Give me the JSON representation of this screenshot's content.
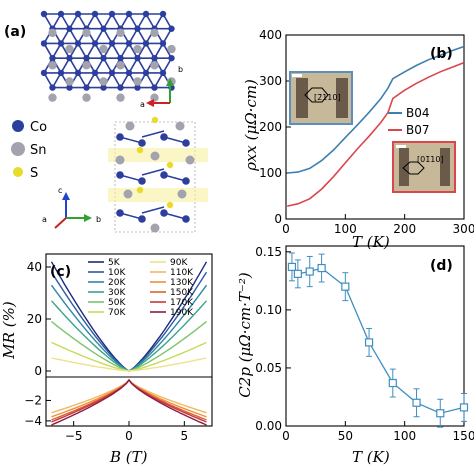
{
  "panel_a": {
    "label": "(a)",
    "elements": [
      {
        "symbol": "Co",
        "color": "#2c3e9e"
      },
      {
        "symbol": "Sn",
        "color": "#9a9aa6"
      },
      {
        "symbol": "S",
        "color": "#e8dc2a"
      }
    ],
    "axes_top": {
      "a": "a",
      "b": "b"
    },
    "axes_bottom": {
      "a": "a",
      "b": "b",
      "c": "c"
    }
  },
  "chart_data": [
    {
      "id": "b",
      "type": "line",
      "panel_label": "(b)",
      "xlabel": "T (K)",
      "ylabel": "ρxx (μΩ·cm)",
      "xlim": [
        0,
        300
      ],
      "ylim": [
        0,
        400
      ],
      "xticks": [
        0,
        100,
        200,
        300
      ],
      "yticks": [
        0,
        100,
        200,
        300,
        400
      ],
      "legend_position": "right",
      "inset_labels": [
        "[2̄110]",
        "[01̄10]"
      ],
      "series": [
        {
          "name": "B04",
          "color": "#3f7fb0",
          "x": [
            2,
            20,
            40,
            60,
            80,
            100,
            120,
            140,
            160,
            172,
            180,
            200,
            220,
            240,
            260,
            280,
            300
          ],
          "y": [
            100,
            102,
            110,
            127,
            150,
            177,
            204,
            232,
            262,
            285,
            305,
            320,
            334,
            346,
            356,
            366,
            375
          ]
        },
        {
          "name": "B07",
          "color": "#d9474d",
          "x": [
            2,
            20,
            40,
            60,
            80,
            100,
            120,
            140,
            160,
            172,
            180,
            200,
            220,
            240,
            260,
            280,
            300
          ],
          "y": [
            28,
            33,
            44,
            65,
            92,
            122,
            152,
            180,
            210,
            232,
            262,
            280,
            295,
            308,
            320,
            330,
            340
          ]
        }
      ]
    },
    {
      "id": "c",
      "type": "line",
      "panel_label": "(c)",
      "xlabel": "B (T)",
      "ylabel": "MR (%)",
      "xlim": [
        -7.5,
        7.5
      ],
      "ylim": [
        -4.5,
        45
      ],
      "xticks": [
        -5,
        0,
        5
      ],
      "yticks_top": [
        0,
        20,
        40
      ],
      "yticks_bottom": [
        -2,
        -4
      ],
      "legend_position": "top",
      "series": [
        {
          "name": "5K",
          "color": "#1b2a7a",
          "coef": 42,
          "sign": 1
        },
        {
          "name": "10K",
          "color": "#2c5aa0",
          "coef": 38,
          "sign": 1
        },
        {
          "name": "20K",
          "color": "#2f86a8",
          "coef": 33,
          "sign": 1
        },
        {
          "name": "30K",
          "color": "#3aa38c",
          "coef": 27,
          "sign": 1
        },
        {
          "name": "50K",
          "color": "#7cc46a",
          "coef": 19,
          "sign": 1
        },
        {
          "name": "70K",
          "color": "#c9d95a",
          "coef": 11,
          "sign": 1
        },
        {
          "name": "90K",
          "color": "#eee38a",
          "coef": 5,
          "sign": 1
        },
        {
          "name": "110K",
          "color": "#f2b860",
          "coef": 3.2,
          "sign": -1
        },
        {
          "name": "130K",
          "color": "#ee8f3c",
          "coef": 3.6,
          "sign": -1
        },
        {
          "name": "150K",
          "color": "#e0602f",
          "coef": 3.9,
          "sign": -1
        },
        {
          "name": "170K",
          "color": "#c23a3a",
          "coef": 4.1,
          "sign": -1
        },
        {
          "name": "190K",
          "color": "#8e1a4a",
          "coef": 4.4,
          "sign": -1
        }
      ]
    },
    {
      "id": "d",
      "type": "scatter",
      "panel_label": "(d)",
      "xlabel": "T (K)",
      "ylabel": "C2p (μΩ·cm·T⁻²)",
      "xlim": [
        0,
        150
      ],
      "ylim": [
        0,
        0.155
      ],
      "xticks": [
        0,
        50,
        100,
        150
      ],
      "yticks": [
        0,
        0.05,
        0.1,
        0.15
      ],
      "series": [
        {
          "name": "",
          "color": "#3f8fc0",
          "x": [
            5,
            10,
            20,
            30,
            50,
            70,
            90,
            110,
            130,
            150
          ],
          "y": [
            0.137,
            0.131,
            0.133,
            0.136,
            0.12,
            0.072,
            0.037,
            0.02,
            0.011,
            0.016
          ],
          "err": [
            0.012,
            0.012,
            0.013,
            0.012,
            0.012,
            0.012,
            0.012,
            0.012,
            0.012,
            0.012
          ]
        }
      ]
    }
  ]
}
